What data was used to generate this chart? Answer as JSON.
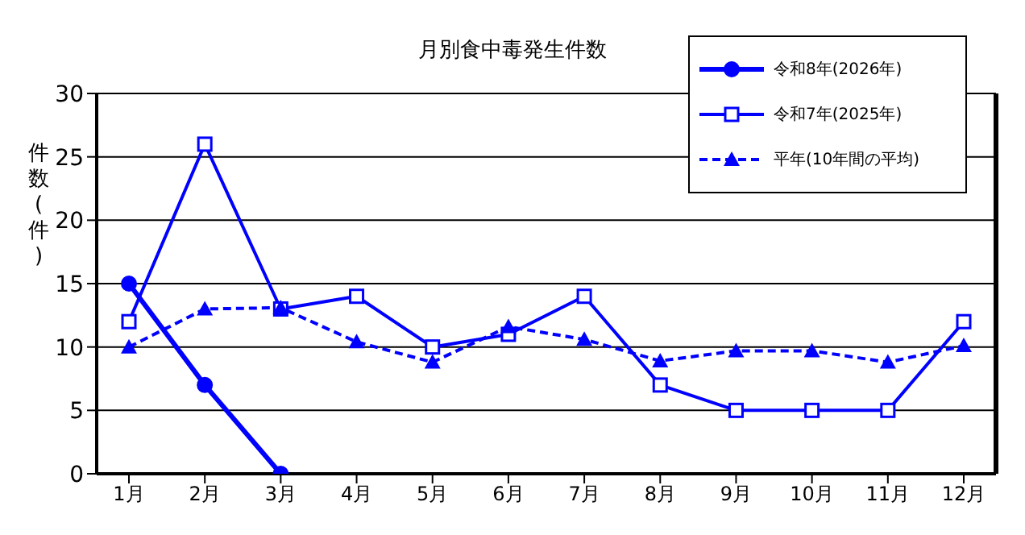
{
  "chart_data": {
    "type": "line",
    "title": "月別食中毒発生件数",
    "ylabel": "件数(件)",
    "categories": [
      "1月",
      "2月",
      "3月",
      "4月",
      "5月",
      "6月",
      "7月",
      "8月",
      "9月",
      "10月",
      "11月",
      "12月"
    ],
    "series": [
      {
        "name": "令和8年(2026年)",
        "color": "#0000ff",
        "marker": "circle",
        "line_style": "solid",
        "values": [
          15,
          7,
          0,
          null,
          null,
          null,
          null,
          null,
          null,
          null,
          null,
          null
        ]
      },
      {
        "name": "令和7年(2025年)",
        "color": "#0000ff",
        "marker": "square",
        "line_style": "solid",
        "values": [
          12,
          26,
          13,
          14,
          10,
          11,
          14,
          7,
          5,
          5,
          5,
          12
        ]
      },
      {
        "name": "平年(10年間の平均)",
        "color": "#0000ff",
        "marker": "triangle",
        "line_style": "dashed",
        "values": [
          10,
          13,
          13.1,
          10.4,
          8.8,
          11.6,
          10.6,
          8.9,
          9.7,
          9.7,
          8.8,
          10.1
        ]
      }
    ],
    "ylim": [
      0,
      30
    ],
    "yticks": [
      0,
      5,
      10,
      15,
      20,
      25,
      30
    ],
    "grid": "y",
    "legend": "top right"
  }
}
